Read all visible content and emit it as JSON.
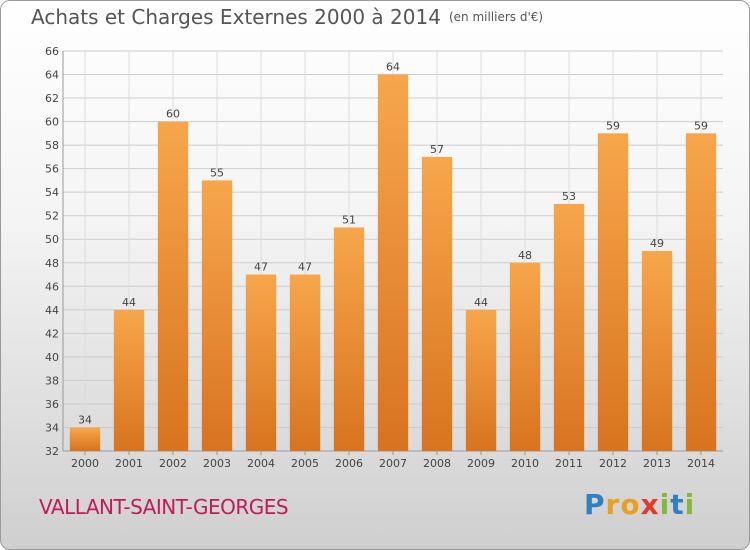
{
  "header": {
    "title": "Achats et Charges Externes 2000 à 2014",
    "subtitle": "(en milliers d'€)"
  },
  "footer": {
    "commune": "VALLANT-SAINT-GEORGES",
    "logo_letters": [
      "P",
      "r",
      "o",
      "x",
      "i",
      "t",
      "i"
    ]
  },
  "colors": {
    "bar_light": "#f7a64c",
    "bar_dark": "#d8731f",
    "grid": "#cccccc",
    "title": "#555555",
    "commune": "#c21a5a"
  },
  "chart_data": {
    "type": "bar",
    "title": "Achats et Charges Externes 2000 à 2014",
    "subtitle": "(en milliers d'€)",
    "categories": [
      "2000",
      "2001",
      "2002",
      "2003",
      "2004",
      "2005",
      "2006",
      "2007",
      "2008",
      "2009",
      "2010",
      "2011",
      "2012",
      "2013",
      "2014"
    ],
    "values": [
      34,
      44,
      60,
      55,
      47,
      47,
      51,
      64,
      57,
      44,
      48,
      53,
      59,
      49,
      59
    ],
    "ylim": [
      32,
      66
    ],
    "yticks": [
      32,
      34,
      36,
      38,
      40,
      42,
      44,
      46,
      48,
      50,
      52,
      54,
      56,
      58,
      60,
      62,
      64,
      66
    ],
    "xlabel": "",
    "ylabel": "",
    "grid": true,
    "data_labels": true
  }
}
